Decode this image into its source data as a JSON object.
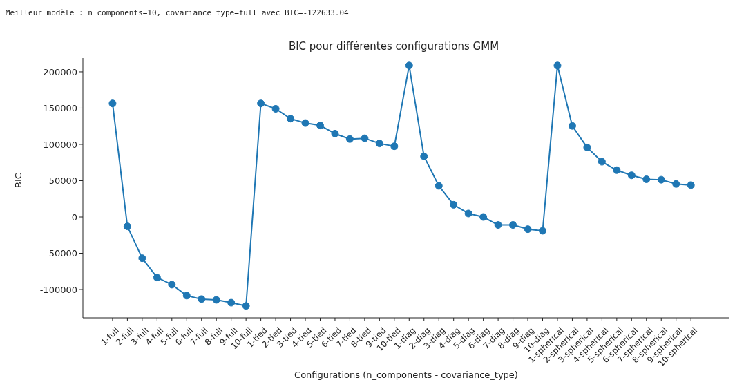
{
  "chart_data": {
    "type": "line",
    "title": "BIC pour différentes configurations GMM",
    "xlabel": "Configurations (n_components - covariance_type)",
    "ylabel": "BIC",
    "annotations": [
      "Meilleur modèle : n_components=10, covariance_type=full avec BIC=-122633.04"
    ],
    "categories": [
      "1-full",
      "2-full",
      "3-full",
      "4-full",
      "5-full",
      "6-full",
      "7-full",
      "8-full",
      "9-full",
      "10-full",
      "1-tied",
      "2-tied",
      "3-tied",
      "4-tied",
      "5-tied",
      "6-tied",
      "7-tied",
      "8-tied",
      "9-tied",
      "10-tied",
      "1-diag",
      "2-diag",
      "3-diag",
      "4-diag",
      "5-diag",
      "6-diag",
      "7-diag",
      "8-diag",
      "9-diag",
      "10-diag",
      "1-spherical",
      "2-spherical",
      "3-spherical",
      "4-spherical",
      "5-spherical",
      "6-spherical",
      "7-spherical",
      "8-spherical",
      "9-spherical",
      "10-spherical"
    ],
    "series": [
      {
        "color": "#1f77b4",
        "values": [
          156500,
          -12900,
          -56800,
          -83500,
          -93200,
          -108400,
          -113200,
          -114200,
          -118100,
          -122600,
          156500,
          149000,
          135500,
          129400,
          126100,
          114800,
          107400,
          108400,
          101300,
          97400,
          208700,
          83500,
          42900,
          16800,
          4800,
          0,
          -11000,
          -11000,
          -16800,
          -19000,
          208700,
          125500,
          95800,
          76100,
          64500,
          57400,
          51900,
          51300,
          45500,
          43900
        ]
      }
    ],
    "ylim": [
      -139000,
      219000
    ],
    "yticks": [
      -100000,
      -50000,
      0,
      50000,
      100000,
      150000,
      200000
    ],
    "grid": false,
    "legend": false,
    "marker": "circle",
    "line_style": "solid"
  }
}
